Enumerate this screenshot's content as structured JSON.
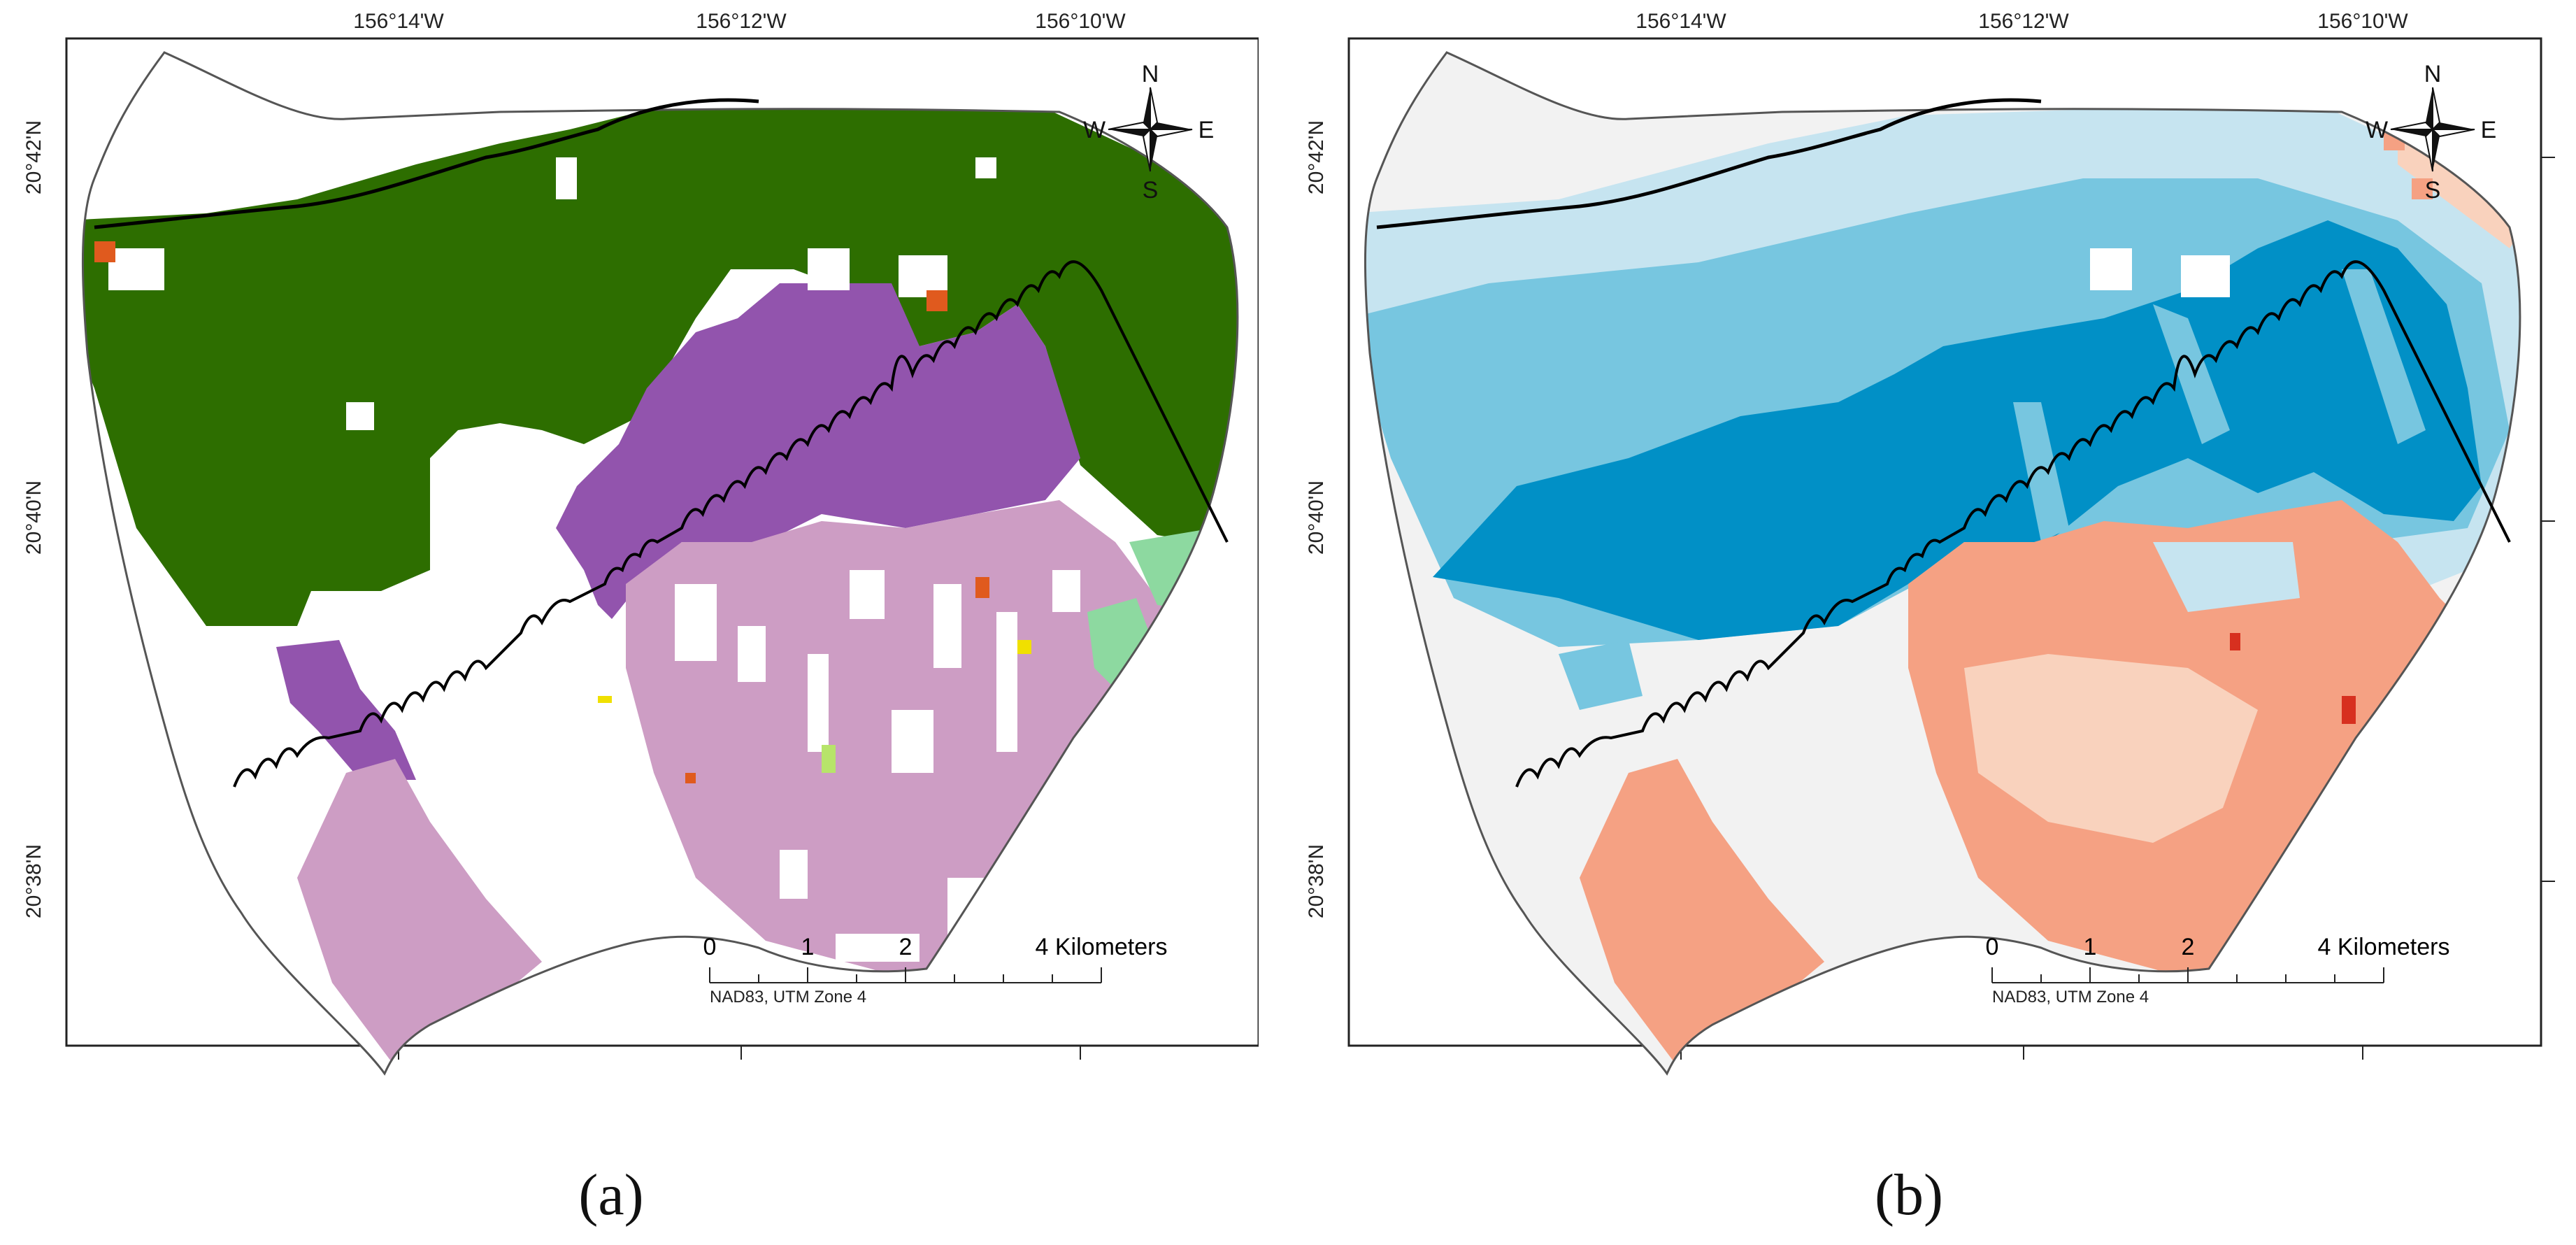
{
  "panels": [
    {
      "id": "a",
      "caption": "(a)",
      "lon_labels": [
        "156°14'W",
        "156°12'W",
        "156°10'W"
      ],
      "lat_labels": [
        "20°42'N",
        "20°40'N",
        "20°38'N"
      ],
      "compass": {
        "n": "N",
        "s": "S",
        "e": "E",
        "w": "W"
      },
      "scale": {
        "ticks": [
          "0",
          "1",
          "2"
        ],
        "end_label": "4 Kilometers",
        "projection": "NAD83, UTM Zone 4"
      },
      "colors": {
        "forest": "#2d6e00",
        "purple": "#9254ad",
        "pink": "#cd9dc4",
        "mint": "#8dd9a0",
        "orange": "#e05a1e",
        "yellow": "#f0e000",
        "lime": "#b7e46a"
      }
    },
    {
      "id": "b",
      "caption": "(b)",
      "lon_labels": [
        "156°14'W",
        "156°12'W",
        "156°10'W"
      ],
      "lat_labels": [
        "20°42'N",
        "20°40'N",
        "20°38'N"
      ],
      "compass": {
        "n": "N",
        "s": "S",
        "e": "E",
        "w": "W"
      },
      "scale": {
        "ticks": [
          "0",
          "1",
          "2"
        ],
        "end_label": "4 Kilometers",
        "projection": "NAD83, UTM Zone 4"
      },
      "colors": {
        "dark_blue": "#0190c6",
        "mid_blue": "#77c6e0",
        "light_blue": "#c6e4f0",
        "salmon": "#f5a183",
        "light_salmon": "#f9d2bd",
        "red": "#d7301f",
        "gray": "#f2f2f2"
      }
    }
  ]
}
